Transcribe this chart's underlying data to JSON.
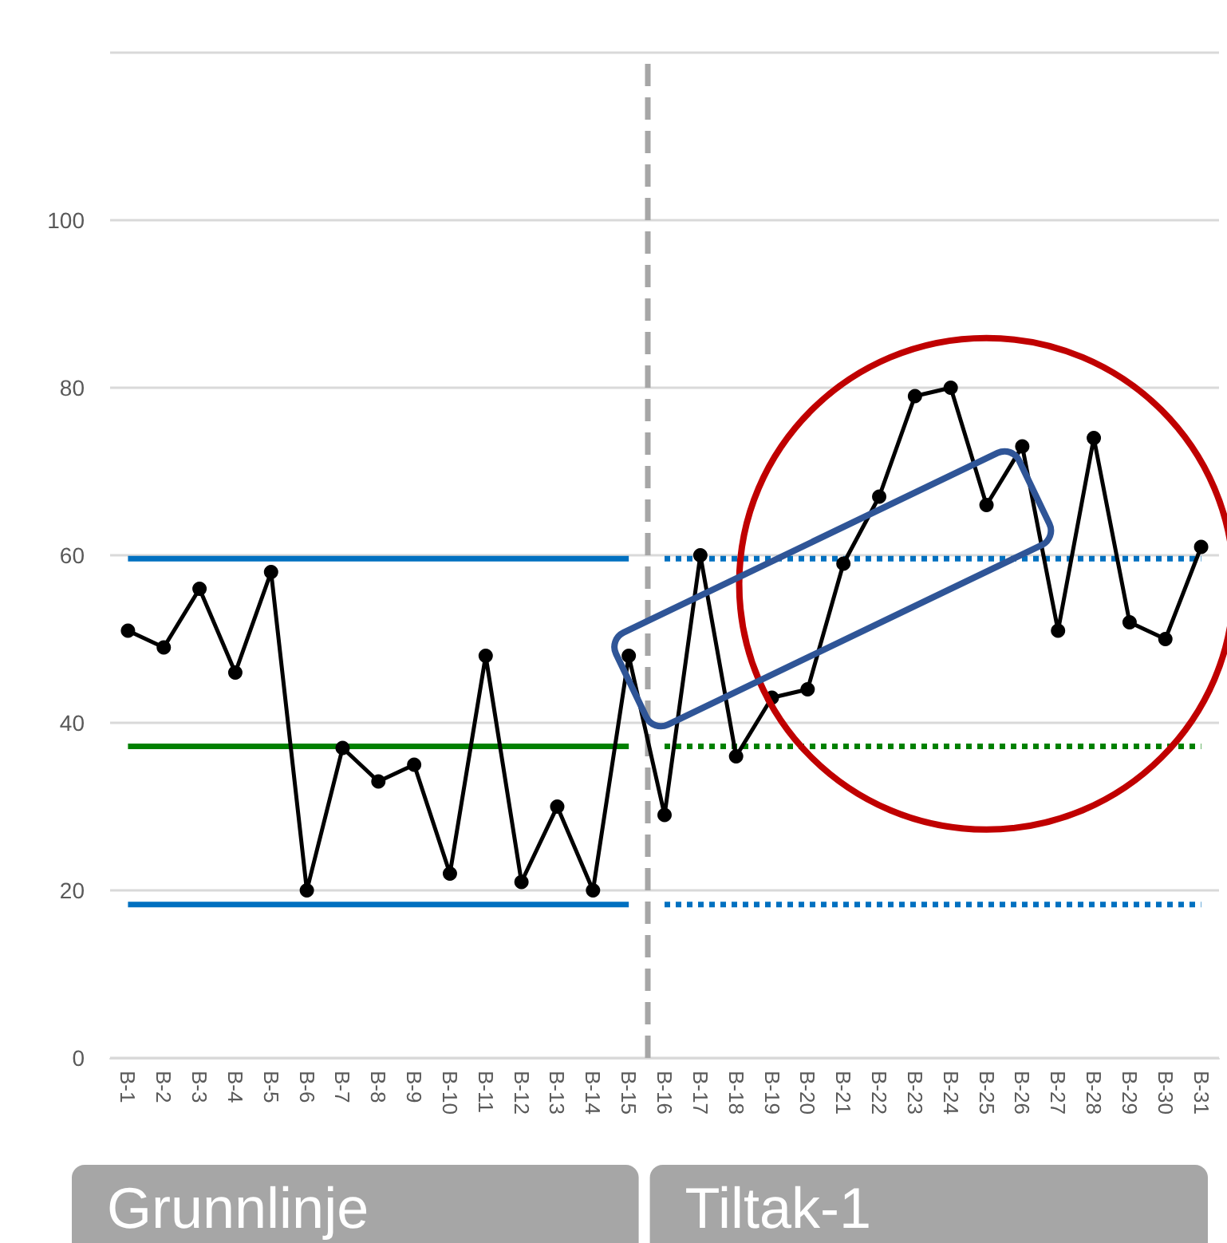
{
  "chart_data": {
    "type": "line",
    "categories": [
      "B-1",
      "B-2",
      "B-3",
      "B-4",
      "B-5",
      "B-6",
      "B-7",
      "B-8",
      "B-9",
      "B-10",
      "B-11",
      "B-12",
      "B-13",
      "B-14",
      "B-15",
      "B-16",
      "B-17",
      "B-18",
      "B-19",
      "B-20",
      "B-21",
      "B-22",
      "B-23",
      "B-24",
      "B-25",
      "B-26",
      "B-27",
      "B-28",
      "B-29",
      "B-30",
      "B-31"
    ],
    "series": [
      {
        "color": "#000000",
        "marker": "circle",
        "values": [
          51,
          49,
          56,
          46,
          58,
          20,
          37,
          33,
          35,
          22,
          48,
          21,
          30,
          20,
          48,
          29,
          60,
          36,
          43,
          44,
          59,
          67,
          79,
          80,
          66,
          73,
          51,
          74,
          52,
          50,
          61
        ]
      },
      {
        "color": "#0070c0",
        "marker": "none",
        "line_style": "solid",
        "values": [
          59.6,
          59.6,
          59.6,
          59.6,
          59.6,
          59.6,
          59.6,
          59.6,
          59.6,
          59.6,
          59.6,
          59.6,
          59.6,
          59.6,
          59.6,
          null,
          null,
          null,
          null,
          null,
          null,
          null,
          null,
          null,
          null,
          null,
          null,
          null,
          null,
          null,
          null
        ]
      },
      {
        "color": "#008000",
        "marker": "none",
        "line_style": "solid",
        "values": [
          37.2,
          37.2,
          37.2,
          37.2,
          37.2,
          37.2,
          37.2,
          37.2,
          37.2,
          37.2,
          37.2,
          37.2,
          37.2,
          37.2,
          37.2,
          null,
          null,
          null,
          null,
          null,
          null,
          null,
          null,
          null,
          null,
          null,
          null,
          null,
          null,
          null,
          null
        ]
      },
      {
        "color": "#0070c0",
        "marker": "none",
        "line_style": "solid",
        "values": [
          18.3,
          18.3,
          18.3,
          18.3,
          18.3,
          18.3,
          18.3,
          18.3,
          18.3,
          18.3,
          18.3,
          18.3,
          18.3,
          18.3,
          18.3,
          null,
          null,
          null,
          null,
          null,
          null,
          null,
          null,
          null,
          null,
          null,
          null,
          null,
          null,
          null,
          null
        ]
      },
      {
        "color": "#0070c0",
        "marker": "none",
        "line_style": "dotted",
        "values": [
          null,
          null,
          null,
          null,
          null,
          null,
          null,
          null,
          null,
          null,
          null,
          null,
          null,
          null,
          null,
          59.6,
          59.6,
          59.6,
          59.6,
          59.6,
          59.6,
          59.6,
          59.6,
          59.6,
          59.6,
          59.6,
          59.6,
          59.6,
          59.6,
          59.6,
          59.6
        ]
      },
      {
        "color": "#008000",
        "marker": "none",
        "line_style": "dotted",
        "values": [
          null,
          null,
          null,
          null,
          null,
          null,
          null,
          null,
          null,
          null,
          null,
          null,
          null,
          null,
          null,
          37.2,
          37.2,
          37.2,
          37.2,
          37.2,
          37.2,
          37.2,
          37.2,
          37.2,
          37.2,
          37.2,
          37.2,
          37.2,
          37.2,
          37.2,
          37.2
        ]
      },
      {
        "color": "#0070c0",
        "marker": "none",
        "line_style": "dotted",
        "values": [
          null,
          null,
          null,
          null,
          null,
          null,
          null,
          null,
          null,
          null,
          null,
          null,
          null,
          null,
          null,
          18.3,
          18.3,
          18.3,
          18.3,
          18.3,
          18.3,
          18.3,
          18.3,
          18.3,
          18.3,
          18.3,
          18.3,
          18.3,
          18.3,
          18.3,
          18.3
        ]
      }
    ],
    "ylim": [
      0,
      120
    ],
    "yticks": [
      0,
      20,
      40,
      60,
      80,
      100,
      {
        "value": 120,
        "label": null
      }
    ],
    "grid": "y",
    "ref_lines": [
      {
        "axis": "x",
        "value": "B-15",
        "color": "#a6a6a6",
        "line_style": "dashed",
        "label": null
      }
    ],
    "annotations": [
      "Grunnlinje",
      "Tiltak-1"
    ]
  }
}
